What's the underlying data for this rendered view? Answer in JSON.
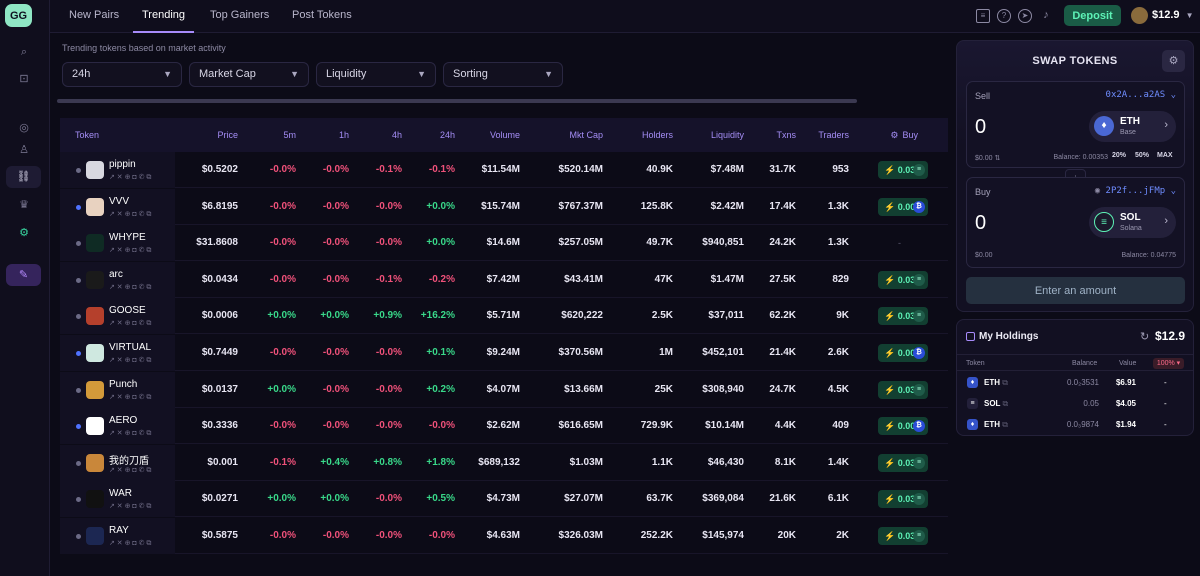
{
  "nav": {
    "logo": "GG",
    "tabs": [
      "New Pairs",
      "Trending",
      "Top Gainers",
      "Post Tokens"
    ],
    "active_tab": "Trending",
    "deposit_label": "Deposit",
    "wallet_balance": "$12.9"
  },
  "subtitle": "Trending tokens based on market activity",
  "filters": [
    "24h",
    "Market Cap",
    "Liquidity",
    "Sorting"
  ],
  "table": {
    "columns": [
      "Token",
      "Price",
      "5m",
      "1h",
      "4h",
      "24h",
      "Volume",
      "Mkt Cap",
      "Holders",
      "Liquidity",
      "Txns",
      "Traders",
      "Buy"
    ],
    "rows": [
      {
        "name": "pippin",
        "price": "$0.5202",
        "m5": "-0.0%",
        "h1": "-0.0%",
        "h4": "-0.1%",
        "h24": "-0.1%",
        "volume": "$11.54M",
        "mcap": "$520.14M",
        "holders": "40.9K",
        "liquidity": "$7.48M",
        "txns": "31.7K",
        "traders": "953",
        "buy": "0.03",
        "chain": "sol"
      },
      {
        "name": "VVV",
        "price": "$6.8195",
        "m5": "-0.0%",
        "h1": "-0.0%",
        "h4": "-0.0%",
        "h24": "+0.0%",
        "volume": "$15.74M",
        "mcap": "$767.37M",
        "holders": "125.8K",
        "liquidity": "$2.42M",
        "txns": "17.4K",
        "traders": "1.3K",
        "buy": "0.001",
        "chain": "base"
      },
      {
        "name": "WHYPE",
        "price": "$31.8608",
        "m5": "-0.0%",
        "h1": "-0.0%",
        "h4": "-0.0%",
        "h24": "+0.0%",
        "volume": "$14.6M",
        "mcap": "$257.05M",
        "holders": "49.7K",
        "liquidity": "$940,851",
        "txns": "24.2K",
        "traders": "1.3K",
        "buy": "-",
        "chain": "none"
      },
      {
        "name": "arc",
        "price": "$0.0434",
        "m5": "-0.0%",
        "h1": "-0.0%",
        "h4": "-0.1%",
        "h24": "-0.2%",
        "volume": "$7.42M",
        "mcap": "$43.41M",
        "holders": "47K",
        "liquidity": "$1.47M",
        "txns": "27.5K",
        "traders": "829",
        "buy": "0.03",
        "chain": "sol"
      },
      {
        "name": "GOOSE",
        "price": "$0.0006",
        "m5": "+0.0%",
        "h1": "+0.0%",
        "h4": "+0.9%",
        "h24": "+16.2%",
        "volume": "$5.71M",
        "mcap": "$620,222",
        "holders": "2.5K",
        "liquidity": "$37,011",
        "txns": "62.2K",
        "traders": "9K",
        "buy": "0.03",
        "chain": "sol"
      },
      {
        "name": "VIRTUAL",
        "price": "$0.7449",
        "m5": "-0.0%",
        "h1": "-0.0%",
        "h4": "-0.0%",
        "h24": "+0.1%",
        "volume": "$9.24M",
        "mcap": "$370.56M",
        "holders": "1M",
        "liquidity": "$452,101",
        "txns": "21.4K",
        "traders": "2.6K",
        "buy": "0.001",
        "chain": "base"
      },
      {
        "name": "Punch",
        "price": "$0.0137",
        "m5": "+0.0%",
        "h1": "-0.0%",
        "h4": "-0.0%",
        "h24": "+0.2%",
        "volume": "$4.07M",
        "mcap": "$13.66M",
        "holders": "25K",
        "liquidity": "$308,940",
        "txns": "24.7K",
        "traders": "4.5K",
        "buy": "0.03",
        "chain": "sol"
      },
      {
        "name": "AERO",
        "price": "$0.3336",
        "m5": "-0.0%",
        "h1": "-0.0%",
        "h4": "-0.0%",
        "h24": "-0.0%",
        "volume": "$2.62M",
        "mcap": "$616.65M",
        "holders": "729.9K",
        "liquidity": "$10.14M",
        "txns": "4.4K",
        "traders": "409",
        "buy": "0.001",
        "chain": "base"
      },
      {
        "name": "我的刀盾",
        "price": "$0.001",
        "m5": "-0.1%",
        "h1": "+0.4%",
        "h4": "+0.8%",
        "h24": "+1.8%",
        "volume": "$689,132",
        "mcap": "$1.03M",
        "holders": "1.1K",
        "liquidity": "$46,430",
        "txns": "8.1K",
        "traders": "1.4K",
        "buy": "0.03",
        "chain": "sol"
      },
      {
        "name": "WAR",
        "price": "$0.0271",
        "m5": "+0.0%",
        "h1": "+0.0%",
        "h4": "-0.0%",
        "h24": "+0.5%",
        "volume": "$4.73M",
        "mcap": "$27.07M",
        "holders": "63.7K",
        "liquidity": "$369,084",
        "txns": "21.6K",
        "traders": "6.1K",
        "buy": "0.03",
        "chain": "sol"
      },
      {
        "name": "RAY",
        "price": "$0.5875",
        "m5": "-0.0%",
        "h1": "-0.0%",
        "h4": "-0.0%",
        "h24": "-0.0%",
        "volume": "$4.63M",
        "mcap": "$326.03M",
        "holders": "252.2K",
        "liquidity": "$145,974",
        "txns": "20K",
        "traders": "2K",
        "buy": "0.03",
        "chain": "sol"
      }
    ]
  },
  "swap": {
    "title": "SWAP TOKENS",
    "sell": {
      "label": "Sell",
      "address": "0x2A...a2AS",
      "amount": "0",
      "usd": "$0.00",
      "token": "ETH",
      "chain": "Base",
      "balance": "Balance: 0.00353",
      "presets": [
        "20%",
        "50%",
        "MAX"
      ]
    },
    "buy": {
      "label": "Buy",
      "address": "2P2f...jFMp",
      "amount": "0",
      "usd": "$0.00",
      "token": "SOL",
      "chain": "Solana",
      "balance": "Balance: 0.04775"
    },
    "enter_label": "Enter an amount"
  },
  "holdings": {
    "title": "My Holdings",
    "total": "$12.9",
    "columns": [
      "Token",
      "Balance",
      "Value",
      "100%"
    ],
    "rows": [
      {
        "token": "ETH",
        "balance": "0.0₂3531",
        "value": "$6.91",
        "change": "-"
      },
      {
        "token": "SOL",
        "balance": "0.05",
        "value": "$4.05",
        "change": "-"
      },
      {
        "token": "ETH",
        "balance": "0.0₃9874",
        "value": "$1.94",
        "change": "-"
      }
    ]
  },
  "colors": {
    "accent": "#a78bfa",
    "positive": "#39d98a",
    "negative": "#f0517a",
    "buy": "#5df2b6"
  }
}
